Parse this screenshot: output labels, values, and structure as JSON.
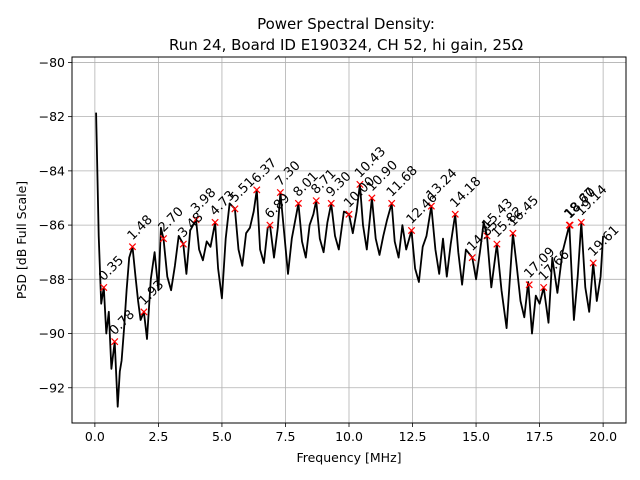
{
  "chart_data": {
    "type": "line",
    "title": "Power Spectral Density:",
    "subtitle": "Run 24, Board ID E190324, CH 52, hi gain, 25Ω",
    "xlabel": "Frequency [MHz]",
    "ylabel": "PSD [dB Full Scale]",
    "xlim": [
      -0.9,
      20.9
    ],
    "ylim": [
      -93.3,
      -79.8
    ],
    "xticks": [
      0.0,
      2.5,
      5.0,
      7.5,
      10.0,
      12.5,
      15.0,
      17.5,
      20.0
    ],
    "xtick_labels": [
      "0.0",
      "2.5",
      "5.0",
      "7.5",
      "10.0",
      "12.5",
      "15.0",
      "17.5",
      "20.0"
    ],
    "yticks": [
      -80,
      -82,
      -84,
      -86,
      -88,
      -90,
      -92
    ],
    "ytick_labels": [
      "−80",
      "−82",
      "−84",
      "−86",
      "−88",
      "−90",
      "−92"
    ],
    "grid": true,
    "line_color": "#000000",
    "marker_color": "#ff0000",
    "trace": {
      "x": [
        0.05,
        0.15,
        0.25,
        0.35,
        0.45,
        0.55,
        0.65,
        0.78,
        0.9,
        0.98,
        1.05,
        1.15,
        1.25,
        1.35,
        1.48,
        1.6,
        1.7,
        1.8,
        1.93,
        2.05,
        2.2,
        2.35,
        2.5,
        2.6,
        2.7,
        2.85,
        3.0,
        3.15,
        3.3,
        3.48,
        3.6,
        3.75,
        3.98,
        4.1,
        4.25,
        4.4,
        4.55,
        4.73,
        4.85,
        5.0,
        5.15,
        5.3,
        5.51,
        5.65,
        5.8,
        5.95,
        6.1,
        6.25,
        6.37,
        6.5,
        6.65,
        6.8,
        6.89,
        7.05,
        7.2,
        7.3,
        7.45,
        7.6,
        7.75,
        8.01,
        8.15,
        8.3,
        8.45,
        8.6,
        8.71,
        8.85,
        9.0,
        9.15,
        9.3,
        9.45,
        9.6,
        9.8,
        10.0,
        10.15,
        10.3,
        10.43,
        10.55,
        10.7,
        10.9,
        11.05,
        11.2,
        11.35,
        11.5,
        11.68,
        11.8,
        11.95,
        12.1,
        12.25,
        12.46,
        12.6,
        12.75,
        12.9,
        13.05,
        13.24,
        13.4,
        13.55,
        13.7,
        13.85,
        14.0,
        14.18,
        14.3,
        14.45,
        14.6,
        14.85,
        15.0,
        15.15,
        15.3,
        15.43,
        15.6,
        15.82,
        16.0,
        16.2,
        16.45,
        16.6,
        16.75,
        16.9,
        17.05,
        17.2,
        17.35,
        17.5,
        17.66,
        17.85,
        18.0,
        18.2,
        18.4,
        18.67,
        18.85,
        19.0,
        19.14,
        19.3,
        19.45,
        19.61,
        19.75,
        19.9,
        20.0
      ],
      "y": [
        -81.85,
        -86.4,
        -88.9,
        -88.3,
        -90.0,
        -89.2,
        -91.3,
        -90.3,
        -92.7,
        -91.4,
        -91.0,
        -89.8,
        -88.4,
        -87.2,
        -86.8,
        -87.9,
        -88.8,
        -89.5,
        -89.2,
        -90.2,
        -88.0,
        -87.0,
        -88.4,
        -86.1,
        -86.5,
        -87.9,
        -88.4,
        -87.5,
        -86.4,
        -86.7,
        -87.8,
        -86.2,
        -85.8,
        -86.9,
        -87.3,
        -86.6,
        -86.8,
        -85.9,
        -87.6,
        -88.7,
        -86.5,
        -85.2,
        -85.4,
        -86.9,
        -87.5,
        -86.3,
        -86.1,
        -85.5,
        -84.7,
        -86.9,
        -87.4,
        -86.1,
        -86.0,
        -87.2,
        -86.1,
        -84.8,
        -86.3,
        -87.8,
        -86.5,
        -85.2,
        -86.6,
        -87.2,
        -86.0,
        -85.6,
        -85.1,
        -86.5,
        -87.0,
        -85.9,
        -85.2,
        -86.4,
        -86.9,
        -85.5,
        -85.6,
        -86.3,
        -85.5,
        -84.5,
        -86.0,
        -86.9,
        -85.0,
        -86.5,
        -87.1,
        -86.4,
        -85.8,
        -85.2,
        -86.6,
        -87.2,
        -86.0,
        -86.9,
        -86.2,
        -87.6,
        -88.1,
        -86.8,
        -86.4,
        -85.3,
        -86.9,
        -87.8,
        -86.5,
        -87.9,
        -86.7,
        -85.6,
        -87.0,
        -88.2,
        -86.9,
        -87.2,
        -88.0,
        -87.0,
        -85.9,
        -86.4,
        -88.3,
        -86.7,
        -88.4,
        -89.8,
        -86.3,
        -87.5,
        -88.8,
        -89.4,
        -88.1,
        -90.0,
        -88.6,
        -88.9,
        -88.3,
        -89.6,
        -87.2,
        -88.5,
        -87.0,
        -86.0,
        -89.5,
        -87.9,
        -85.9,
        -88.3,
        -89.2,
        -87.4,
        -88.8,
        -87.9,
        -86.4
      ]
    },
    "peaks": [
      {
        "x": 0.35,
        "y": -88.3,
        "label": "0.35"
      },
      {
        "x": 0.78,
        "y": -90.3,
        "label": "0.78"
      },
      {
        "x": 1.48,
        "y": -86.8,
        "label": "1.48"
      },
      {
        "x": 1.93,
        "y": -89.2,
        "label": "1.93"
      },
      {
        "x": 2.7,
        "y": -86.5,
        "label": "2.70"
      },
      {
        "x": 3.48,
        "y": -86.7,
        "label": "3.48"
      },
      {
        "x": 3.98,
        "y": -85.8,
        "label": "3.98"
      },
      {
        "x": 4.73,
        "y": -85.9,
        "label": "4.73"
      },
      {
        "x": 5.51,
        "y": -85.4,
        "label": "5.51"
      },
      {
        "x": 6.37,
        "y": -84.7,
        "label": "6.37"
      },
      {
        "x": 6.89,
        "y": -86.0,
        "label": "6.89"
      },
      {
        "x": 7.3,
        "y": -84.8,
        "label": "7.30"
      },
      {
        "x": 8.01,
        "y": -85.2,
        "label": "8.01"
      },
      {
        "x": 8.71,
        "y": -85.1,
        "label": "8.71"
      },
      {
        "x": 9.3,
        "y": -85.2,
        "label": "9.30"
      },
      {
        "x": 10.0,
        "y": -85.6,
        "label": "10.00"
      },
      {
        "x": 10.43,
        "y": -84.5,
        "label": "10.43"
      },
      {
        "x": 10.9,
        "y": -85.0,
        "label": "10.90"
      },
      {
        "x": 11.68,
        "y": -85.2,
        "label": "11.68"
      },
      {
        "x": 12.46,
        "y": -86.2,
        "label": "12.46"
      },
      {
        "x": 13.24,
        "y": -85.3,
        "label": "13.24"
      },
      {
        "x": 14.18,
        "y": -85.6,
        "label": "14.18"
      },
      {
        "x": 14.85,
        "y": -87.2,
        "label": "14.85"
      },
      {
        "x": 15.43,
        "y": -86.4,
        "label": "15.43"
      },
      {
        "x": 15.82,
        "y": -86.7,
        "label": "15.82"
      },
      {
        "x": 16.45,
        "y": -86.3,
        "label": "16.45"
      },
      {
        "x": 17.09,
        "y": -88.2,
        "label": "17.09"
      },
      {
        "x": 17.66,
        "y": -88.3,
        "label": "17.66"
      },
      {
        "x": 18.67,
        "y": -86.0,
        "label": "18.67"
      },
      {
        "x": 18.7,
        "y": -86.0,
        "label": "18.70"
      },
      {
        "x": 19.14,
        "y": -85.9,
        "label": "19.14"
      },
      {
        "x": 19.61,
        "y": -87.4,
        "label": "19.61"
      }
    ]
  }
}
